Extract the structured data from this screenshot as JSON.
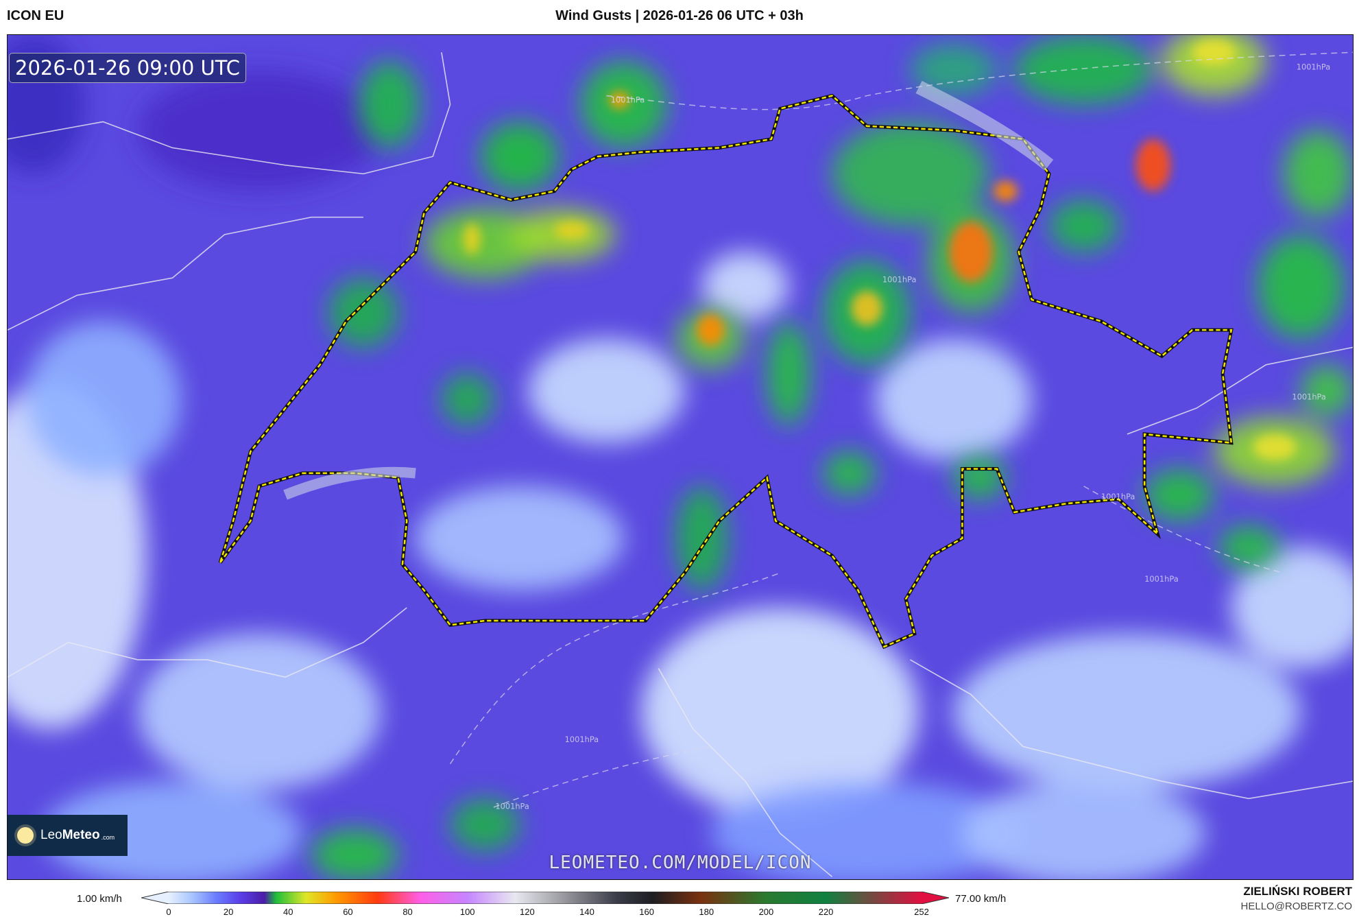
{
  "header": {
    "model": "ICON EU",
    "title": "Wind Gusts | 2026-01-26 06 UTC + 03h"
  },
  "map": {
    "valid_time": "2026-01-26 09:00 UTC",
    "watermark": "LEOMETEO.COM/MODEL/ICON",
    "isobar_labels": [
      "1001hPa",
      "1001hPa",
      "1001hPa",
      "1001hPa",
      "1001hPa",
      "1001hPa",
      "1001hPa",
      "1001hPa"
    ],
    "border_highlight_color": "#f5e600"
  },
  "logo": {
    "part1": "Leo",
    "part2": "Meteo",
    "part3": ".com"
  },
  "colorbar": {
    "min_label": "1.00 km/h",
    "max_label": "77.00 km/h",
    "ticks": [
      "0",
      "20",
      "40",
      "60",
      "80",
      "100",
      "120",
      "140",
      "160",
      "180",
      "200",
      "220",
      "252"
    ],
    "tick_values": [
      0,
      20,
      40,
      60,
      80,
      100,
      120,
      140,
      160,
      180,
      200,
      220,
      252
    ],
    "range": [
      0,
      252
    ],
    "stops": [
      [
        0,
        "#e6f0ff"
      ],
      [
        8,
        "#a8c4ff"
      ],
      [
        16,
        "#6a7cff"
      ],
      [
        24,
        "#5a3ee8"
      ],
      [
        32,
        "#4b1da8"
      ],
      [
        36,
        "#1fbf3a"
      ],
      [
        46,
        "#dfe629"
      ],
      [
        56,
        "#ff9a00"
      ],
      [
        70,
        "#ff3a10"
      ],
      [
        84,
        "#ff5ee6"
      ],
      [
        100,
        "#c585ff"
      ],
      [
        116,
        "#e8e8f0"
      ],
      [
        132,
        "#9a9aa0"
      ],
      [
        150,
        "#3a3c48"
      ],
      [
        162,
        "#1e1e22"
      ],
      [
        178,
        "#7a3010"
      ],
      [
        200,
        "#2a7a30"
      ],
      [
        220,
        "#108040"
      ],
      [
        252,
        "#e01040"
      ]
    ]
  },
  "credits": {
    "author": "ZIELIŃSKI ROBERT",
    "email": "HELLO@ROBERTZ.CO"
  }
}
